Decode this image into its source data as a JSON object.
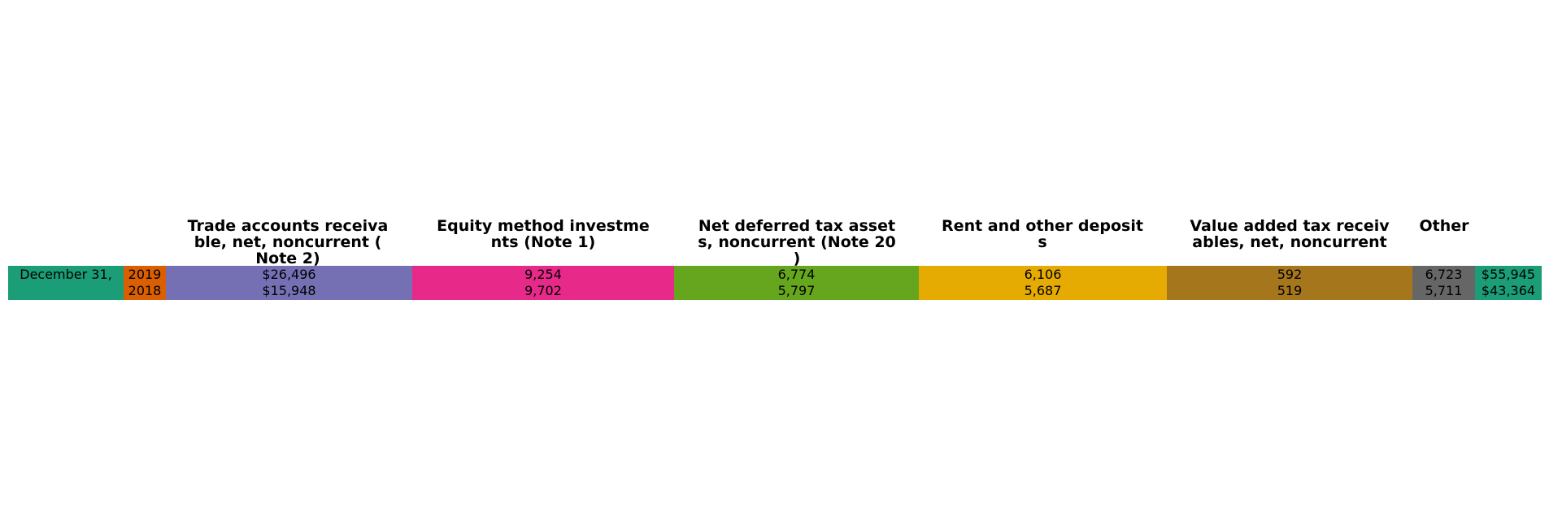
{
  "table": {
    "row_label": "December 31,",
    "years": [
      "2019",
      "2018"
    ],
    "columns": [
      {
        "key": "trade",
        "header": "Trade accounts receiva\nble, net, noncurrent (\nNote 2)",
        "v2019": "$26,496",
        "v2018": "$15,948",
        "color": "#7570b3"
      },
      {
        "key": "equity",
        "header": "Equity method investme\nnts (Note 1)",
        "v2019": "9,254",
        "v2018": "9,702",
        "color": "#e7298a"
      },
      {
        "key": "deferred",
        "header": "Net deferred tax asset\ns, noncurrent (Note 20\n)",
        "v2019": "6,774",
        "v2018": "5,797",
        "color": "#66a61e"
      },
      {
        "key": "rent",
        "header": "Rent and other deposit\ns",
        "v2019": "6,106",
        "v2018": "5,687",
        "color": "#e6ab02"
      },
      {
        "key": "vat",
        "header": "Value added tax receiv\nables, net, noncurrent",
        "v2019": "592",
        "v2018": "519",
        "color": "#a6761d"
      },
      {
        "key": "other",
        "header": "Other",
        "v2019": "6,723",
        "v2018": "5,711",
        "color": "#666666"
      },
      {
        "key": "total",
        "header": "",
        "v2019": "$55,945",
        "v2018": "$43,364",
        "color": "#1b9e77"
      }
    ],
    "label_color": "#1b9e77",
    "year_color": "#d95f02"
  }
}
